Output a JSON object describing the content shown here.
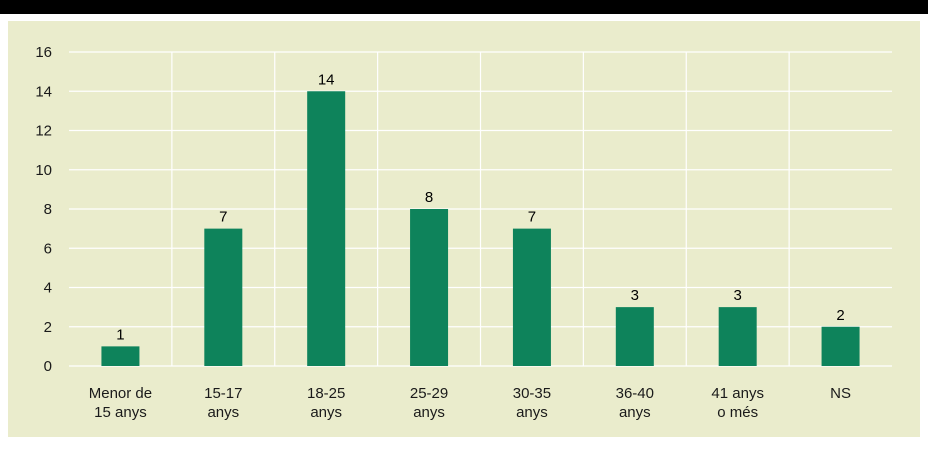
{
  "chart_data": {
    "type": "bar",
    "categories": [
      [
        "Menor de",
        "15 anys"
      ],
      [
        "15-17",
        "anys"
      ],
      [
        "18-25",
        "anys"
      ],
      [
        "25-29",
        "anys"
      ],
      [
        "30-35",
        "anys"
      ],
      [
        "36-40",
        "anys"
      ],
      [
        "41 anys",
        "o més"
      ],
      [
        "NS"
      ]
    ],
    "values": [
      1,
      7,
      14,
      8,
      7,
      3,
      3,
      2
    ],
    "value_labels": [
      "1",
      "7",
      "14",
      "8",
      "7",
      "3",
      "3",
      "2"
    ],
    "yticks": [
      "0",
      "2",
      "4",
      "6",
      "8",
      "10",
      "12",
      "14",
      "16"
    ],
    "ylim": [
      0,
      16
    ],
    "title": "",
    "xlabel": "",
    "ylabel": "",
    "grid": "both",
    "colors": {
      "bar": "#0e835b",
      "background": "#eaeccc",
      "grid": "#ffffff",
      "topbar": "#000000"
    }
  }
}
